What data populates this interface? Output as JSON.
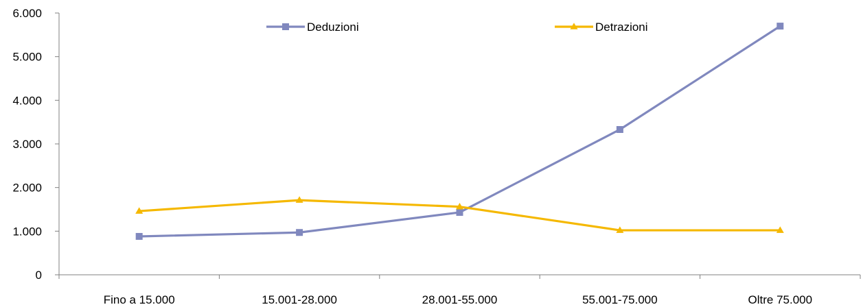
{
  "chart_data": {
    "type": "line",
    "title": "",
    "xlabel": "",
    "ylabel": "",
    "categories": [
      "Fino a 15.000",
      "15.001-28.000",
      "28.001-55.000",
      "55.001-75.000",
      "Oltre 75.000"
    ],
    "ylim": [
      0,
      6000
    ],
    "yticks": [
      0,
      1000,
      2000,
      3000,
      4000,
      5000,
      6000
    ],
    "ytick_labels": [
      "0",
      "1.000",
      "2.000",
      "3.000",
      "4.000",
      "5.000",
      "6.000"
    ],
    "grid": false,
    "legend_position": "top",
    "series": [
      {
        "name": "Deduzioni",
        "color": "#8088BE",
        "marker": "square",
        "values": [
          880,
          970,
          1430,
          3330,
          5700
        ]
      },
      {
        "name": "Detrazioni",
        "color": "#F5B800",
        "marker": "triangle",
        "values": [
          1460,
          1710,
          1560,
          1020,
          1020
        ]
      }
    ]
  }
}
